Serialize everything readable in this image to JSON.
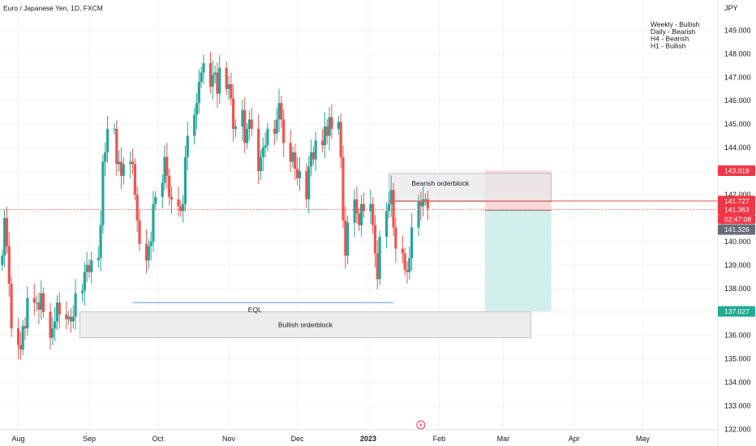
{
  "chart_data": {
    "type": "candlestick",
    "title": "Euro / Japanese Yen, 1D, FXCM",
    "currency": "JPY",
    "notes": [
      "Weekly - Bullish",
      "Daily - Bearish",
      "H4 - Bearish",
      "H1 - Bullish"
    ],
    "ylim": [
      132.0,
      149.5
    ],
    "y_ticks": [
      "132.000",
      "133.000",
      "134.000",
      "135.000",
      "136.000",
      "137.000",
      "138.000",
      "139.000",
      "140.000",
      "141.000",
      "142.000",
      "143.000",
      "144.000",
      "145.000",
      "146.000",
      "147.000",
      "148.000",
      "149.000"
    ],
    "x_range": [
      "2022-07-24",
      "2023-05-20"
    ],
    "x_ticks": [
      {
        "label": "Aug",
        "date": "2022-08-01"
      },
      {
        "label": "Sep",
        "date": "2022-09-01"
      },
      {
        "label": "Oct",
        "date": "2022-10-01"
      },
      {
        "label": "Nov",
        "date": "2022-11-01"
      },
      {
        "label": "Dec",
        "date": "2022-12-01"
      },
      {
        "label": "2023",
        "date": "2023-01-01"
      },
      {
        "label": "Feb",
        "date": "2023-02-01"
      },
      {
        "label": "Mar",
        "date": "2023-03-01"
      },
      {
        "label": "Apr",
        "date": "2023-04-01"
      },
      {
        "label": "May",
        "date": "2023-05-01"
      }
    ],
    "grid": true,
    "colors": {
      "up": "#26a69a",
      "down": "#ef5350",
      "grid": "#f0f3fa",
      "eql_line": "#5b9bd5",
      "tp_zone": "#cdece8",
      "sl_zone": "#f5cfcf",
      "orderblock": "#e8e8ea"
    },
    "close_series": [
      [
        "2022-07-25",
        139.4
      ],
      [
        "2022-07-26",
        141.0
      ],
      [
        "2022-07-27",
        139.8
      ],
      [
        "2022-07-28",
        138.2
      ],
      [
        "2022-07-29",
        136.3
      ],
      [
        "2022-08-01",
        135.6
      ],
      [
        "2022-08-02",
        135.4
      ],
      [
        "2022-08-03",
        136.4
      ],
      [
        "2022-08-04",
        136.3
      ],
      [
        "2022-08-05",
        137.6
      ],
      [
        "2022-08-08",
        137.4
      ],
      [
        "2022-08-09",
        137.4
      ],
      [
        "2022-08-10",
        137.1
      ],
      [
        "2022-08-11",
        137.8
      ],
      [
        "2022-08-12",
        137.0
      ],
      [
        "2022-08-15",
        135.9
      ],
      [
        "2022-08-16",
        136.3
      ],
      [
        "2022-08-17",
        136.6
      ],
      [
        "2022-08-18",
        137.4
      ],
      [
        "2022-08-19",
        136.9
      ],
      [
        "2022-08-22",
        136.7
      ],
      [
        "2022-08-23",
        136.8
      ],
      [
        "2022-08-24",
        136.6
      ],
      [
        "2022-08-25",
        136.8
      ],
      [
        "2022-08-26",
        137.8
      ],
      [
        "2022-08-29",
        137.9
      ],
      [
        "2022-08-30",
        138.7
      ],
      [
        "2022-08-31",
        139.0
      ],
      [
        "2022-09-01",
        138.7
      ],
      [
        "2022-09-02",
        139.2
      ],
      [
        "2022-09-05",
        139.3
      ],
      [
        "2022-09-06",
        140.7
      ],
      [
        "2022-09-07",
        143.4
      ],
      [
        "2022-09-08",
        143.8
      ],
      [
        "2022-09-09",
        144.8
      ],
      [
        "2022-09-12",
        144.8
      ],
      [
        "2022-09-13",
        143.3
      ],
      [
        "2022-09-14",
        143.4
      ],
      [
        "2022-09-15",
        142.8
      ],
      [
        "2022-09-16",
        143.3
      ],
      [
        "2022-09-19",
        143.4
      ],
      [
        "2022-09-20",
        143.3
      ],
      [
        "2022-09-21",
        142.0
      ],
      [
        "2022-09-22",
        140.9
      ],
      [
        "2022-09-23",
        139.9
      ],
      [
        "2022-09-26",
        139.2
      ],
      [
        "2022-09-27",
        139.8
      ],
      [
        "2022-09-28",
        140.0
      ],
      [
        "2022-09-29",
        141.6
      ],
      [
        "2022-09-30",
        141.9
      ],
      [
        "2022-10-03",
        142.5
      ],
      [
        "2022-10-04",
        143.6
      ],
      [
        "2022-10-05",
        142.8
      ],
      [
        "2022-10-06",
        141.9
      ],
      [
        "2022-10-07",
        141.8
      ],
      [
        "2022-10-10",
        141.5
      ],
      [
        "2022-10-11",
        141.3
      ],
      [
        "2022-10-12",
        141.6
      ],
      [
        "2022-10-13",
        143.6
      ],
      [
        "2022-10-14",
        144.5
      ],
      [
        "2022-10-17",
        145.4
      ],
      [
        "2022-10-18",
        145.9
      ],
      [
        "2022-10-19",
        146.8
      ],
      [
        "2022-10-20",
        147.2
      ],
      [
        "2022-10-21",
        147.6
      ],
      [
        "2022-10-24",
        146.6
      ],
      [
        "2022-10-25",
        147.1
      ],
      [
        "2022-10-26",
        147.2
      ],
      [
        "2022-10-27",
        146.3
      ],
      [
        "2022-10-28",
        147.4
      ],
      [
        "2022-10-31",
        146.5
      ],
      [
        "2022-11-01",
        146.7
      ],
      [
        "2022-11-02",
        146.1
      ],
      [
        "2022-11-03",
        144.8
      ],
      [
        "2022-11-04",
        144.9
      ],
      [
        "2022-11-07",
        145.6
      ],
      [
        "2022-11-08",
        144.2
      ],
      [
        "2022-11-09",
        144.8
      ],
      [
        "2022-11-10",
        145.2
      ],
      [
        "2022-11-11",
        144.8
      ],
      [
        "2022-11-14",
        143.0
      ],
      [
        "2022-11-15",
        143.6
      ],
      [
        "2022-11-16",
        144.0
      ],
      [
        "2022-11-17",
        144.1
      ],
      [
        "2022-11-18",
        144.8
      ],
      [
        "2022-11-21",
        144.6
      ],
      [
        "2022-11-22",
        145.2
      ],
      [
        "2022-11-23",
        145.9
      ],
      [
        "2022-11-24",
        145.2
      ],
      [
        "2022-11-25",
        144.2
      ],
      [
        "2022-11-28",
        143.4
      ],
      [
        "2022-11-29",
        143.8
      ],
      [
        "2022-11-30",
        143.1
      ],
      [
        "2022-12-01",
        142.7
      ],
      [
        "2022-12-02",
        143.0
      ],
      [
        "2022-12-05",
        141.8
      ],
      [
        "2022-12-06",
        143.2
      ],
      [
        "2022-12-07",
        143.8
      ],
      [
        "2022-12-08",
        143.5
      ],
      [
        "2022-12-09",
        144.3
      ],
      [
        "2022-12-12",
        144.1
      ],
      [
        "2022-12-13",
        144.9
      ],
      [
        "2022-12-14",
        144.5
      ],
      [
        "2022-12-15",
        145.3
      ],
      [
        "2022-12-16",
        144.8
      ],
      [
        "2022-12-19",
        145.1
      ],
      [
        "2022-12-20",
        143.6
      ],
      [
        "2022-12-21",
        140.9
      ],
      [
        "2022-12-22",
        139.4
      ],
      [
        "2022-12-23",
        140.8
      ],
      [
        "2022-12-26",
        141.8
      ],
      [
        "2022-12-27",
        141.2
      ],
      [
        "2022-12-28",
        140.7
      ],
      [
        "2022-12-29",
        141.6
      ],
      [
        "2022-12-30",
        141.3
      ],
      [
        "2023-01-02",
        141.6
      ],
      [
        "2023-01-03",
        140.7
      ],
      [
        "2023-01-04",
        139.5
      ],
      [
        "2023-01-05",
        138.4
      ],
      [
        "2023-01-06",
        140.2
      ],
      [
        "2023-01-09",
        141.3
      ],
      [
        "2023-01-10",
        141.6
      ],
      [
        "2023-01-11",
        142.2
      ],
      [
        "2023-01-12",
        140.6
      ],
      [
        "2023-01-13",
        139.7
      ],
      [
        "2023-01-16",
        139.5
      ],
      [
        "2023-01-17",
        138.8
      ],
      [
        "2023-01-18",
        138.7
      ],
      [
        "2023-01-19",
        139.3
      ],
      [
        "2023-01-20",
        140.6
      ],
      [
        "2023-01-23",
        141.7
      ],
      [
        "2023-01-24",
        141.5
      ],
      [
        "2023-01-25",
        141.8
      ],
      [
        "2023-01-26",
        141.8
      ],
      [
        "2023-01-27",
        141.4
      ]
    ],
    "annotations": {
      "bearish_orderblock": {
        "label": "Bearish orderblock",
        "from": "2023-01-10",
        "to": "2023-03-22",
        "top": 142.9,
        "bottom": 141.7
      },
      "bullish_orderblock": {
        "label": "Bullish orderblock",
        "from": "2022-08-28",
        "to": "2023-03-13",
        "top": 137.0,
        "bottom": 135.9
      },
      "eql": {
        "label": "EQL",
        "from": "2022-09-20",
        "to": "2023-01-12",
        "level": 137.4
      },
      "short_position": {
        "from": "2023-02-21",
        "to": "2023-03-22",
        "entry": 141.326,
        "stop": 143.019,
        "target": 137.027
      },
      "current_price_line": 141.363,
      "orderblock_line": 141.727
    },
    "price_badges": [
      {
        "text": "143.019",
        "kind": "stop"
      },
      {
        "text": "141.727",
        "kind": "line"
      },
      {
        "text": "141.363",
        "kind": "last"
      },
      {
        "text": "02:47:08",
        "kind": "countdown"
      },
      {
        "text": "141.326",
        "kind": "entry"
      },
      {
        "text": "137.027",
        "kind": "target"
      }
    ]
  }
}
